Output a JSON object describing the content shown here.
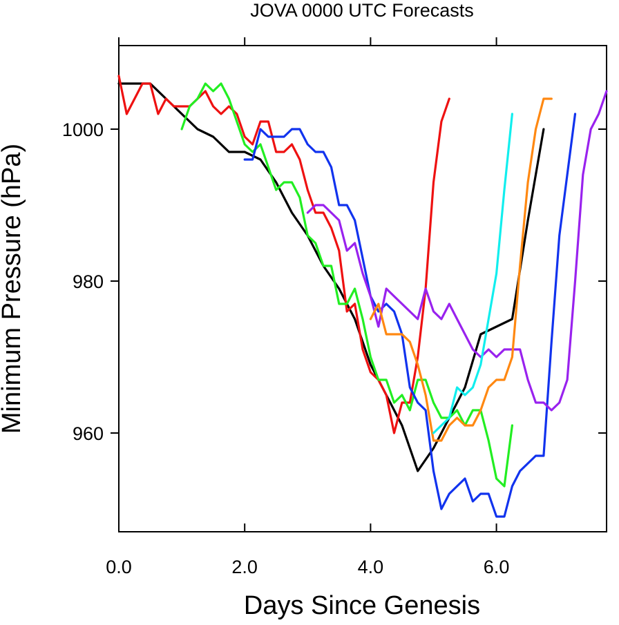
{
  "chart_data": {
    "type": "line",
    "title": "JOVA 0000 UTC Forecasts",
    "xlabel": "Days Since Genesis",
    "ylabel": "Minimum Pressure (hPa)",
    "xlim": [
      0,
      7.75
    ],
    "ylim": [
      947,
      1011
    ],
    "x_ticks": [
      0,
      2,
      4,
      6
    ],
    "x_tick_labels": [
      "0.0",
      "2.0",
      "4.0",
      "6.0"
    ],
    "y_ticks": [
      960,
      980,
      1000
    ],
    "y_tick_labels": [
      "960",
      "980",
      "1000"
    ],
    "grid": false,
    "legend": false,
    "series": [
      {
        "color": "#000000",
        "x": [
          0,
          0.5,
          1.0,
          1.25,
          1.5,
          1.75,
          2.0,
          2.25,
          2.5,
          2.75,
          3.0,
          3.25,
          3.5,
          3.75,
          4.0,
          4.25,
          4.5,
          4.75,
          5.0,
          5.25,
          5.5,
          5.75,
          6.0,
          6.25,
          6.5,
          6.75
        ],
        "y": [
          1006,
          1006,
          1002,
          1000,
          999,
          997,
          997,
          996,
          993,
          989,
          986,
          982,
          979,
          975,
          969,
          965,
          961,
          955,
          958,
          962,
          966,
          973,
          974,
          975,
          988,
          1000
        ]
      },
      {
        "color": "#ee1111",
        "x": [
          0,
          0.125,
          0.25,
          0.375,
          0.5,
          0.625,
          0.75,
          0.875,
          1.0,
          1.125,
          1.25,
          1.375,
          1.5,
          1.625,
          1.75,
          1.875,
          2.0,
          2.125,
          2.25,
          2.375,
          2.5,
          2.625,
          2.75,
          2.875,
          3.0,
          3.125,
          3.25,
          3.375,
          3.5,
          3.625,
          3.75,
          3.875,
          4.0,
          4.125,
          4.25,
          4.375,
          4.5,
          4.625,
          4.75,
          4.875,
          5.0,
          5.125,
          5.25
        ],
        "y": [
          1007,
          1002,
          1004,
          1006,
          1006,
          1002,
          1004,
          1003,
          1003,
          1003,
          1004,
          1005,
          1003,
          1002,
          1003,
          1002,
          999,
          998,
          1001,
          1001,
          997,
          997,
          998,
          996,
          992,
          989,
          989,
          987,
          984,
          976,
          977,
          971,
          968,
          967,
          965,
          960,
          964,
          964,
          970,
          979,
          993,
          1001,
          1004
        ]
      },
      {
        "color": "#22ee22",
        "x": [
          1.0,
          1.125,
          1.25,
          1.375,
          1.5,
          1.625,
          1.75,
          1.875,
          2.0,
          2.125,
          2.25,
          2.375,
          2.5,
          2.625,
          2.75,
          2.875,
          3.0,
          3.125,
          3.25,
          3.375,
          3.5,
          3.625,
          3.75,
          3.875,
          4.0,
          4.125,
          4.25,
          4.375,
          4.5,
          4.625,
          4.75,
          4.875,
          5.0,
          5.125,
          5.25,
          5.375,
          5.5,
          5.625,
          5.75,
          5.875,
          6.0,
          6.125,
          6.25
        ],
        "y": [
          1000,
          1003,
          1004,
          1006,
          1005,
          1006,
          1004,
          1001,
          998,
          997,
          998,
          995,
          992,
          993,
          993,
          991,
          986,
          985,
          982,
          982,
          977,
          977,
          979,
          975,
          970,
          967,
          967,
          964,
          965,
          963,
          967,
          967,
          964,
          962,
          962,
          963,
          961,
          963,
          963,
          959,
          954,
          953,
          961
        ]
      },
      {
        "color": "#1133ee",
        "x": [
          2.0,
          2.125,
          2.25,
          2.375,
          2.5,
          2.625,
          2.75,
          2.875,
          3.0,
          3.125,
          3.25,
          3.375,
          3.5,
          3.625,
          3.75,
          3.875,
          4.0,
          4.125,
          4.25,
          4.375,
          4.5,
          4.625,
          4.75,
          4.875,
          5.0,
          5.125,
          5.25,
          5.375,
          5.5,
          5.625,
          5.75,
          5.875,
          6.0,
          6.125,
          6.25,
          6.375,
          6.5,
          6.625,
          6.75,
          6.875,
          7.0,
          7.125,
          7.25
        ],
        "y": [
          996,
          996,
          1000,
          999,
          999,
          999,
          1000,
          1000,
          998,
          997,
          997,
          995,
          990,
          990,
          988,
          983,
          978,
          976,
          977,
          976,
          973,
          966,
          964,
          963,
          955,
          950,
          952,
          953,
          954,
          951,
          952,
          952,
          949,
          949,
          953,
          955,
          956,
          957,
          957,
          972,
          986,
          994,
          1002
        ]
      },
      {
        "color": "#9922ee",
        "x": [
          3.0,
          3.125,
          3.25,
          3.375,
          3.5,
          3.625,
          3.75,
          3.875,
          4.0,
          4.125,
          4.25,
          4.375,
          4.5,
          4.625,
          4.75,
          4.875,
          5.0,
          5.125,
          5.25,
          5.375,
          5.5,
          5.625,
          5.75,
          5.875,
          6.0,
          6.125,
          6.25,
          6.375,
          6.5,
          6.625,
          6.75,
          6.875,
          7.0,
          7.125,
          7.25,
          7.375,
          7.5,
          7.625,
          7.75
        ],
        "y": [
          989,
          990,
          990,
          989,
          988,
          984,
          985,
          981,
          978,
          974,
          979,
          978,
          977,
          976,
          975,
          979,
          976,
          975,
          977,
          975,
          973,
          971,
          970,
          971,
          970,
          971,
          971,
          971,
          967,
          964,
          964,
          963,
          964,
          967,
          980,
          994,
          1000,
          1002,
          1005
        ]
      },
      {
        "color": "#ff8811",
        "x": [
          4.0,
          4.125,
          4.25,
          4.375,
          4.5,
          4.625,
          4.75,
          4.875,
          5.0,
          5.125,
          5.25,
          5.375,
          5.5,
          5.625,
          5.75,
          5.875,
          6.0,
          6.125,
          6.25,
          6.375,
          6.5,
          6.625,
          6.75,
          6.875
        ],
        "y": [
          975,
          977,
          973,
          973,
          973,
          972,
          969,
          965,
          959,
          959,
          961,
          962,
          961,
          961,
          963,
          966,
          967,
          967,
          970,
          982,
          993,
          1000,
          1004,
          1004
        ]
      },
      {
        "color": "#11eeee",
        "x": [
          5.0,
          5.125,
          5.25,
          5.375,
          5.5,
          5.625,
          5.75,
          5.875,
          6.0,
          6.125,
          6.25
        ],
        "y": [
          960,
          961,
          962,
          966,
          965,
          966,
          969,
          975,
          981,
          992,
          1002
        ]
      }
    ]
  }
}
